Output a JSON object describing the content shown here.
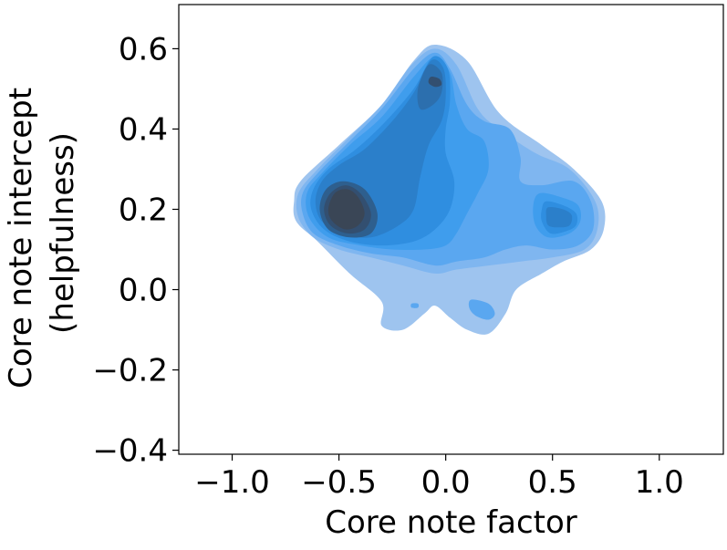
{
  "chart_data": {
    "type": "kde_contour",
    "title": "",
    "xlabel": "Core note factor",
    "ylabel_lines": [
      "Core note intercept",
      "(helpfulness)"
    ],
    "xlim": [
      -1.25,
      1.3
    ],
    "ylim": [
      -0.41,
      0.71
    ],
    "x_ticks": [
      -1.0,
      -0.5,
      0.0,
      0.5,
      1.0
    ],
    "y_ticks": [
      -0.4,
      -0.2,
      0.0,
      0.2,
      0.4,
      0.6
    ],
    "x_tick_labels": [
      "−1.0",
      "−0.5",
      "0.0",
      "0.5",
      "1.0"
    ],
    "y_tick_labels": [
      "−0.4",
      "−0.2",
      "0.0",
      "0.2",
      "0.4",
      "0.6"
    ],
    "grid": false,
    "colors": {
      "levels": [
        "#9ec4ef",
        "#7fb6f0",
        "#5aa7f0",
        "#3f9ded",
        "#2f8ee0",
        "#2b7fca",
        "#2c6fae",
        "#2e5f8e",
        "#334f70",
        "#3a4656"
      ]
    },
    "series": [
      {
        "outline": [
          [
            -0.05,
            0.61
          ],
          [
            0.1,
            0.57
          ],
          [
            0.25,
            0.44
          ],
          [
            0.45,
            0.36
          ],
          [
            0.6,
            0.3
          ],
          [
            0.73,
            0.22
          ],
          [
            0.74,
            0.15
          ],
          [
            0.68,
            0.1
          ],
          [
            0.55,
            0.07
          ],
          [
            0.45,
            0.04
          ],
          [
            0.33,
            0.0
          ],
          [
            0.28,
            -0.06
          ],
          [
            0.2,
            -0.11
          ],
          [
            0.1,
            -0.1
          ],
          [
            0.02,
            -0.07
          ],
          [
            -0.05,
            -0.04
          ],
          [
            -0.1,
            -0.06
          ],
          [
            -0.2,
            -0.1
          ],
          [
            -0.3,
            -0.09
          ],
          [
            -0.3,
            -0.03
          ],
          [
            -0.45,
            0.04
          ],
          [
            -0.6,
            0.12
          ],
          [
            -0.7,
            0.17
          ],
          [
            -0.71,
            0.22
          ],
          [
            -0.68,
            0.27
          ],
          [
            -0.5,
            0.36
          ],
          [
            -0.3,
            0.46
          ],
          [
            -0.15,
            0.57
          ]
        ]
      },
      {
        "outline": [
          [
            -0.05,
            0.6
          ],
          [
            0.05,
            0.56
          ],
          [
            0.15,
            0.45
          ],
          [
            0.25,
            0.4
          ],
          [
            0.42,
            0.34
          ],
          [
            0.58,
            0.3
          ],
          [
            0.7,
            0.22
          ],
          [
            0.71,
            0.15
          ],
          [
            0.65,
            0.1
          ],
          [
            0.5,
            0.08
          ],
          [
            0.35,
            0.07
          ],
          [
            0.2,
            0.06
          ],
          [
            0.05,
            0.05
          ],
          [
            -0.05,
            0.04
          ],
          [
            -0.2,
            0.06
          ],
          [
            -0.35,
            0.08
          ],
          [
            -0.5,
            0.1
          ],
          [
            -0.62,
            0.13
          ],
          [
            -0.69,
            0.18
          ],
          [
            -0.69,
            0.24
          ],
          [
            -0.6,
            0.3
          ],
          [
            -0.45,
            0.38
          ],
          [
            -0.3,
            0.46
          ],
          [
            -0.16,
            0.56
          ]
        ]
      },
      {
        "outline": [
          [
            -0.05,
            0.59
          ],
          [
            0.02,
            0.55
          ],
          [
            0.1,
            0.46
          ],
          [
            0.18,
            0.42
          ],
          [
            0.3,
            0.4
          ],
          [
            0.35,
            0.33
          ],
          [
            0.35,
            0.27
          ],
          [
            0.45,
            0.26
          ],
          [
            0.6,
            0.27
          ],
          [
            0.68,
            0.22
          ],
          [
            0.69,
            0.15
          ],
          [
            0.62,
            0.11
          ],
          [
            0.5,
            0.1
          ],
          [
            0.38,
            0.11
          ],
          [
            0.28,
            0.1
          ],
          [
            0.18,
            0.08
          ],
          [
            0.05,
            0.07
          ],
          [
            -0.05,
            0.06
          ],
          [
            -0.2,
            0.08
          ],
          [
            -0.35,
            0.09
          ],
          [
            -0.5,
            0.11
          ],
          [
            -0.62,
            0.14
          ],
          [
            -0.67,
            0.19
          ],
          [
            -0.67,
            0.24
          ],
          [
            -0.6,
            0.29
          ],
          [
            -0.45,
            0.37
          ],
          [
            -0.3,
            0.45
          ],
          [
            -0.15,
            0.55
          ]
        ]
      },
      {
        "outline": [
          [
            -0.05,
            0.58
          ],
          [
            0.02,
            0.54
          ],
          [
            0.05,
            0.46
          ],
          [
            0.1,
            0.4
          ],
          [
            0.18,
            0.37
          ],
          [
            0.2,
            0.3
          ],
          [
            0.15,
            0.24
          ],
          [
            0.1,
            0.19
          ],
          [
            0.05,
            0.14
          ],
          [
            0.0,
            0.11
          ],
          [
            -0.1,
            0.1
          ],
          [
            -0.25,
            0.1
          ],
          [
            -0.4,
            0.11
          ],
          [
            -0.55,
            0.13
          ],
          [
            -0.64,
            0.18
          ],
          [
            -0.65,
            0.24
          ],
          [
            -0.58,
            0.29
          ],
          [
            -0.45,
            0.36
          ],
          [
            -0.3,
            0.43
          ],
          [
            -0.15,
            0.53
          ]
        ]
      },
      {
        "outline": [
          [
            -0.06,
            0.58
          ],
          [
            0.01,
            0.55
          ],
          [
            0.02,
            0.47
          ],
          [
            0.0,
            0.4
          ],
          [
            0.0,
            0.34
          ],
          [
            0.04,
            0.27
          ],
          [
            0.02,
            0.2
          ],
          [
            -0.05,
            0.15
          ],
          [
            -0.15,
            0.12
          ],
          [
            -0.3,
            0.11
          ],
          [
            -0.45,
            0.12
          ],
          [
            -0.57,
            0.15
          ],
          [
            -0.63,
            0.2
          ],
          [
            -0.62,
            0.25
          ],
          [
            -0.55,
            0.3
          ],
          [
            -0.42,
            0.35
          ],
          [
            -0.28,
            0.42
          ],
          [
            -0.15,
            0.5
          ]
        ]
      },
      {
        "outline": [
          [
            -0.07,
            0.57
          ],
          [
            -0.01,
            0.55
          ],
          [
            0.0,
            0.48
          ],
          [
            -0.02,
            0.42
          ],
          [
            -0.08,
            0.36
          ],
          [
            -0.12,
            0.28
          ],
          [
            -0.15,
            0.2
          ],
          [
            -0.22,
            0.16
          ],
          [
            -0.35,
            0.13
          ],
          [
            -0.48,
            0.14
          ],
          [
            -0.58,
            0.17
          ],
          [
            -0.61,
            0.22
          ],
          [
            -0.58,
            0.27
          ],
          [
            -0.5,
            0.31
          ],
          [
            -0.38,
            0.35
          ],
          [
            -0.25,
            0.42
          ],
          [
            -0.15,
            0.49
          ]
        ]
      },
      {
        "outline": [
          [
            -0.08,
            0.56
          ],
          [
            -0.02,
            0.54
          ],
          [
            -0.02,
            0.49
          ],
          [
            -0.06,
            0.46
          ],
          [
            -0.12,
            0.45
          ],
          [
            -0.13,
            0.5
          ]
        ]
      },
      {
        "outline": [
          [
            -0.48,
            0.27
          ],
          [
            -0.38,
            0.25
          ],
          [
            -0.32,
            0.19
          ],
          [
            -0.35,
            0.14
          ],
          [
            -0.45,
            0.13
          ],
          [
            -0.55,
            0.15
          ],
          [
            -0.59,
            0.2
          ],
          [
            -0.56,
            0.25
          ]
        ]
      },
      {
        "outline": [
          [
            -0.47,
            0.26
          ],
          [
            -0.4,
            0.24
          ],
          [
            -0.35,
            0.19
          ],
          [
            -0.38,
            0.15
          ],
          [
            -0.46,
            0.14
          ],
          [
            -0.54,
            0.16
          ],
          [
            -0.57,
            0.2
          ],
          [
            -0.54,
            0.24
          ]
        ]
      },
      {
        "outline": [
          [
            -0.46,
            0.25
          ],
          [
            -0.41,
            0.23
          ],
          [
            -0.38,
            0.19
          ],
          [
            -0.41,
            0.16
          ],
          [
            -0.47,
            0.15
          ],
          [
            -0.53,
            0.17
          ],
          [
            -0.55,
            0.2
          ],
          [
            -0.52,
            0.24
          ]
        ]
      },
      {
        "outline": [
          [
            -0.07,
            0.53
          ],
          [
            -0.03,
            0.525
          ],
          [
            -0.02,
            0.51
          ],
          [
            -0.05,
            0.505
          ],
          [
            -0.08,
            0.515
          ]
        ]
      },
      {
        "outline": [
          [
            0.44,
            0.24
          ],
          [
            0.54,
            0.23
          ],
          [
            0.62,
            0.21
          ],
          [
            0.63,
            0.17
          ],
          [
            0.58,
            0.14
          ],
          [
            0.48,
            0.13
          ],
          [
            0.42,
            0.16
          ],
          [
            0.41,
            0.21
          ]
        ]
      },
      {
        "outline": [
          [
            0.47,
            0.22
          ],
          [
            0.55,
            0.21
          ],
          [
            0.61,
            0.19
          ],
          [
            0.61,
            0.16
          ],
          [
            0.56,
            0.145
          ],
          [
            0.49,
            0.14
          ],
          [
            0.45,
            0.17
          ],
          [
            0.45,
            0.2
          ]
        ]
      },
      {
        "outline": [
          [
            0.48,
            0.205
          ],
          [
            0.55,
            0.2
          ],
          [
            0.59,
            0.185
          ],
          [
            0.58,
            0.16
          ],
          [
            0.53,
            0.155
          ],
          [
            0.48,
            0.16
          ],
          [
            0.47,
            0.185
          ]
        ]
      },
      {
        "outline": [
          [
            0.12,
            -0.025
          ],
          [
            0.2,
            -0.035
          ],
          [
            0.23,
            -0.06
          ],
          [
            0.2,
            -0.075
          ],
          [
            0.14,
            -0.065
          ],
          [
            0.11,
            -0.045
          ]
        ]
      },
      {
        "outline": [
          [
            -0.16,
            -0.035
          ],
          [
            -0.13,
            -0.035
          ],
          [
            -0.13,
            -0.045
          ],
          [
            -0.16,
            -0.045
          ]
        ]
      }
    ]
  }
}
